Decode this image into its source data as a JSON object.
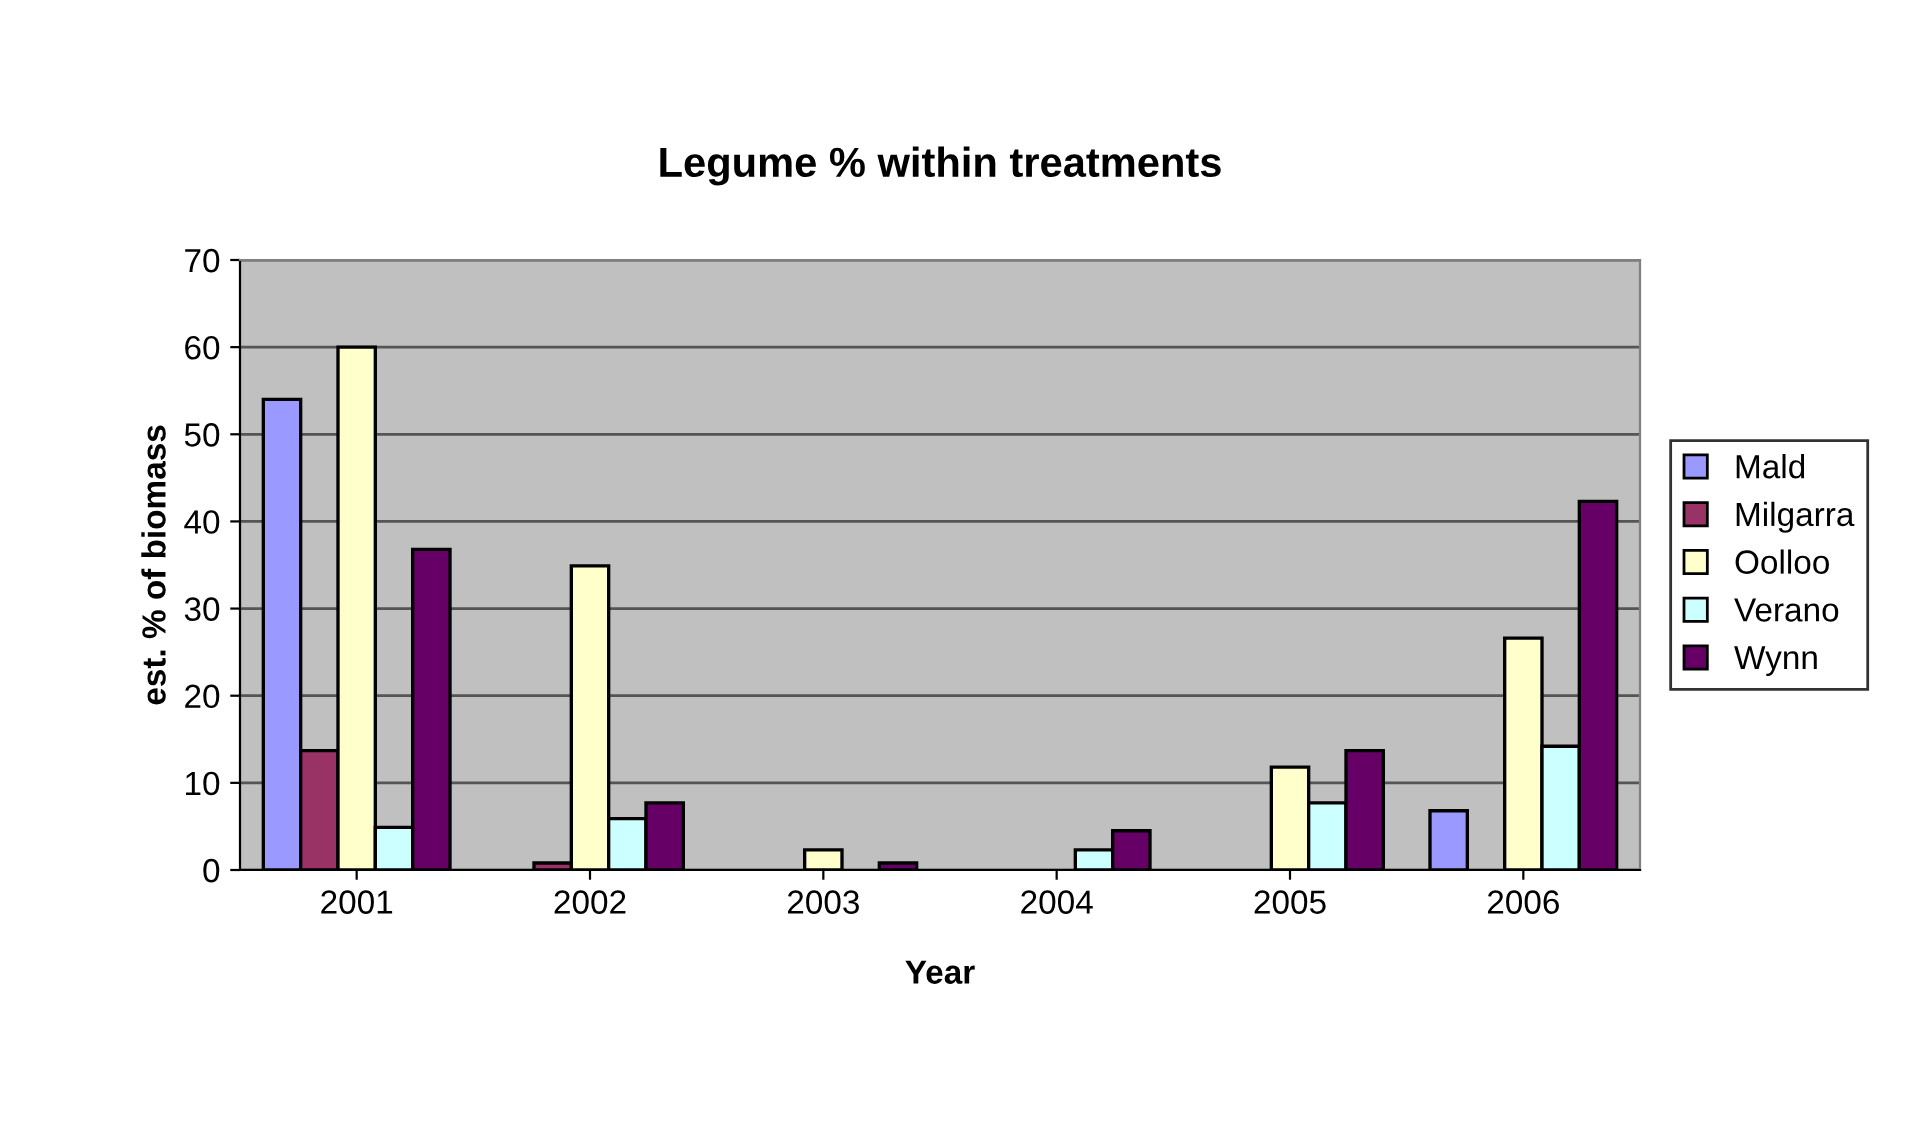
{
  "chart_data": {
    "type": "bar",
    "title": "Legume % within treatments",
    "xlabel": "Year",
    "ylabel": "est. % of biomass",
    "categories": [
      "2001",
      "2002",
      "2003",
      "2004",
      "2005",
      "2006"
    ],
    "series": [
      {
        "name": "Mald",
        "color": "#9999ff",
        "values": [
          54,
          null,
          null,
          null,
          null,
          6.8
        ]
      },
      {
        "name": "Milgarra",
        "color": "#993366",
        "values": [
          13.7,
          0.8,
          null,
          null,
          null,
          null
        ]
      },
      {
        "name": "Oolloo",
        "color": "#ffffcc",
        "values": [
          60,
          34.9,
          2.3,
          null,
          11.8,
          26.6
        ]
      },
      {
        "name": "Verano",
        "color": "#ccffff",
        "values": [
          4.9,
          5.9,
          null,
          2.3,
          7.7,
          14.2
        ]
      },
      {
        "name": "Wynn",
        "color": "#660066",
        "values": [
          36.8,
          7.7,
          0.8,
          4.5,
          13.7,
          42.3
        ]
      }
    ],
    "ylim": [
      0,
      70
    ],
    "yticks": [
      0,
      10,
      20,
      30,
      40,
      50,
      60,
      70
    ],
    "grid": "y",
    "legend": "right"
  }
}
